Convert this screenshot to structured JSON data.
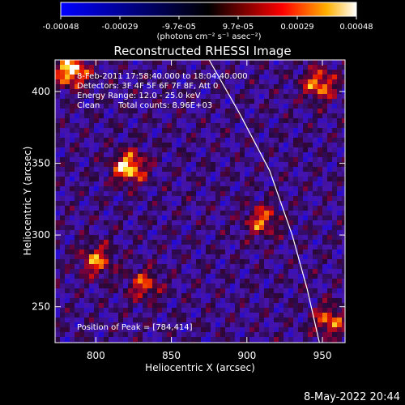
{
  "colorbar": {
    "ticks": [
      "-0.00048",
      "-0.00029",
      "-9.7e-05",
      "9.7e-05",
      "0.00029",
      "0.00048"
    ],
    "unit_label": "(photons cm⁻² s⁻¹ asec⁻²)",
    "colors": [
      "#0000ff",
      "#000000",
      "#ff0000",
      "#ffff00",
      "#ffffff"
    ]
  },
  "chart_data": {
    "type": "heatmap",
    "title": "Reconstructed RHESSI Image",
    "xlabel": "Heliocentric X (arcsec)",
    "ylabel": "Heliocentric Y (arcsec)",
    "xlim": [
      773,
      965
    ],
    "ylim": [
      225,
      422
    ],
    "x_ticks": [
      800,
      850,
      900,
      950
    ],
    "y_ticks": [
      250,
      300,
      350,
      400
    ],
    "x_tick_labels": [
      "800",
      "850",
      "900",
      "950"
    ],
    "y_tick_labels": [
      "250",
      "300",
      "350",
      "400"
    ],
    "value_range": [
      -0.00048,
      0.00048
    ],
    "annotations": [
      "8-Feb-2011 17:58:40.000 to 18:04:40.000",
      "Detectors: 3F 4F 5F 6F 7F 8F, Att 0",
      "Energy Range: 12.0 - 25.0 keV",
      "Clean",
      "Total counts: 8.96E+03"
    ],
    "peak_label": "Position of Peak = [784,414]",
    "peak_position": [
      784,
      414
    ],
    "hot_spots": [
      {
        "x": 822,
        "y": 347,
        "value": 0.00045
      },
      {
        "x": 784,
        "y": 414,
        "value": 0.00048
      },
      {
        "x": 948,
        "y": 405,
        "value": 0.00035
      },
      {
        "x": 800,
        "y": 282,
        "value": 0.0003
      },
      {
        "x": 832,
        "y": 265,
        "value": 0.00024
      },
      {
        "x": 910,
        "y": 310,
        "value": 0.00028
      },
      {
        "x": 955,
        "y": 240,
        "value": 0.0003
      }
    ],
    "limb_curve": [
      [
        875,
        422
      ],
      [
        895,
        385
      ],
      [
        915,
        345
      ],
      [
        930,
        300
      ],
      [
        940,
        262
      ],
      [
        948,
        225
      ]
    ]
  },
  "footer": {
    "date": "8-May-2022 20:44"
  }
}
